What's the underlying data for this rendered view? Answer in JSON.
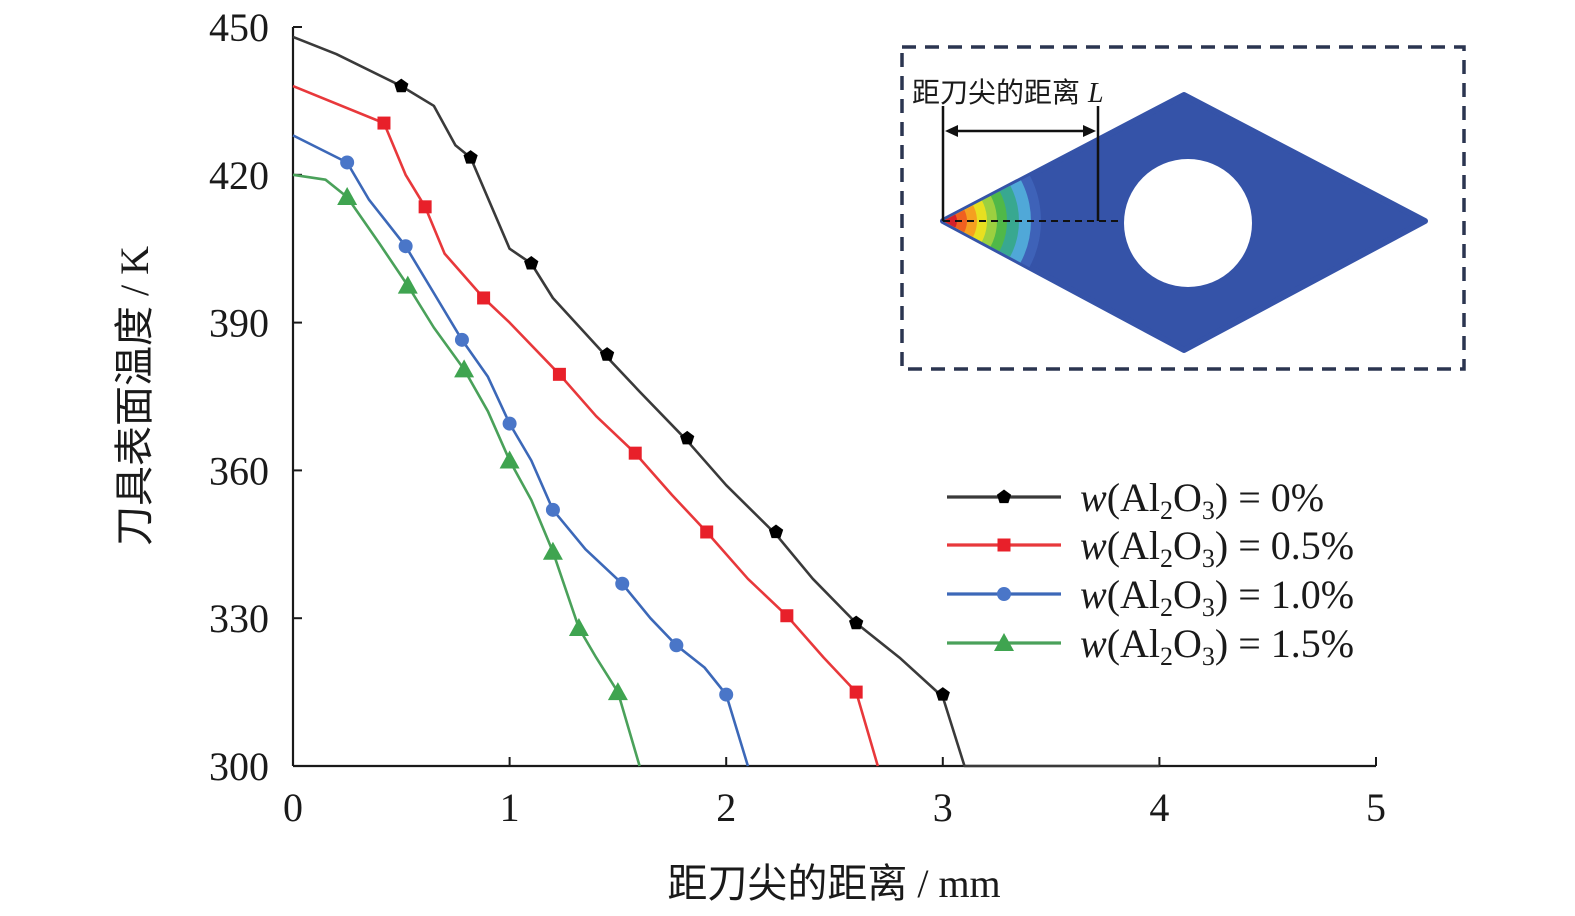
{
  "chart_data": {
    "type": "line",
    "xlabel": "距刀尖的距离 / mm",
    "ylabel": "刀具表面温度 / K",
    "xlim": [
      0,
      5
    ],
    "ylim": [
      300,
      450
    ],
    "xticks": [
      "0",
      "1",
      "2",
      "3",
      "4",
      "5"
    ],
    "yticks": [
      "300",
      "330",
      "360",
      "390",
      "420",
      "450"
    ],
    "grid": false,
    "legend_position": "right-center",
    "series": [
      {
        "name_prefix": "w(Al",
        "name_sub1": "2",
        "name_mid": "O",
        "name_sub2": "3",
        "name_suffix": ") = 0%",
        "color": "#3a3a3a",
        "marker": "pentagon",
        "marker_color": "#000000",
        "line": [
          [
            0,
            448
          ],
          [
            0.2,
            444.5
          ],
          [
            0.5,
            438
          ],
          [
            0.65,
            434
          ],
          [
            0.75,
            426
          ],
          [
            0.82,
            423.5
          ],
          [
            1.0,
            405
          ],
          [
            1.1,
            402
          ],
          [
            1.2,
            395
          ],
          [
            1.45,
            383
          ],
          [
            1.6,
            376
          ],
          [
            1.82,
            366
          ],
          [
            2.0,
            357
          ],
          [
            2.23,
            347
          ],
          [
            2.4,
            338
          ],
          [
            2.6,
            329
          ],
          [
            2.8,
            322
          ],
          [
            3.0,
            314
          ],
          [
            3.1,
            300
          ],
          [
            4.0,
            300
          ]
        ],
        "markers": [
          [
            0.5,
            438
          ],
          [
            0.82,
            423.5
          ],
          [
            1.1,
            402
          ],
          [
            1.45,
            383.5
          ],
          [
            1.82,
            366.5
          ],
          [
            2.23,
            347.5
          ],
          [
            2.6,
            329
          ],
          [
            3.0,
            314.5
          ]
        ]
      },
      {
        "name_prefix": "w(Al",
        "name_sub1": "2",
        "name_mid": "O",
        "name_sub2": "3",
        "name_suffix": ") = 0.5%",
        "color": "#e8383b",
        "marker": "square",
        "marker_color": "#e8202a",
        "line": [
          [
            0,
            438
          ],
          [
            0.42,
            430.5
          ],
          [
            0.52,
            420
          ],
          [
            0.61,
            413.5
          ],
          [
            0.7,
            404
          ],
          [
            0.88,
            395
          ],
          [
            1.0,
            390
          ],
          [
            1.23,
            379.5
          ],
          [
            1.4,
            371
          ],
          [
            1.58,
            363.5
          ],
          [
            1.75,
            355
          ],
          [
            1.91,
            347.5
          ],
          [
            2.1,
            338
          ],
          [
            2.28,
            330.5
          ],
          [
            2.45,
            322
          ],
          [
            2.6,
            315
          ],
          [
            2.7,
            300
          ]
        ],
        "markers": [
          [
            0.42,
            430.5
          ],
          [
            0.61,
            413.5
          ],
          [
            0.88,
            395
          ],
          [
            1.23,
            379.5
          ],
          [
            1.58,
            363.5
          ],
          [
            1.91,
            347.5
          ],
          [
            2.28,
            330.5
          ],
          [
            2.6,
            315
          ]
        ]
      },
      {
        "name_prefix": "w(Al",
        "name_sub1": "2",
        "name_mid": "O",
        "name_sub2": "3",
        "name_suffix": ") = 1.0%",
        "color": "#3c68b8",
        "marker": "circle",
        "marker_color": "#4a76c8",
        "line": [
          [
            0,
            428
          ],
          [
            0.25,
            422.5
          ],
          [
            0.35,
            415
          ],
          [
            0.52,
            405.5
          ],
          [
            0.65,
            396
          ],
          [
            0.78,
            386.5
          ],
          [
            0.9,
            379
          ],
          [
            1.0,
            369.5
          ],
          [
            1.1,
            362
          ],
          [
            1.2,
            352
          ],
          [
            1.35,
            344
          ],
          [
            1.52,
            337
          ],
          [
            1.65,
            330
          ],
          [
            1.77,
            324.5
          ],
          [
            1.9,
            320
          ],
          [
            2.0,
            314.5
          ],
          [
            2.1,
            300
          ]
        ],
        "markers": [
          [
            0.25,
            422.5
          ],
          [
            0.52,
            405.5
          ],
          [
            0.78,
            386.5
          ],
          [
            1.0,
            369.5
          ],
          [
            1.2,
            352
          ],
          [
            1.52,
            337
          ],
          [
            1.77,
            324.5
          ],
          [
            2.0,
            314.5
          ]
        ]
      },
      {
        "name_prefix": "w(Al",
        "name_sub1": "2",
        "name_mid": "O",
        "name_sub2": "3",
        "name_suffix": ") = 1.5%",
        "color": "#4aa15a",
        "marker": "triangle",
        "marker_color": "#3fa450",
        "line": [
          [
            0,
            420
          ],
          [
            0.15,
            419
          ],
          [
            0.25,
            415.5
          ],
          [
            0.4,
            406
          ],
          [
            0.53,
            397.5
          ],
          [
            0.65,
            389
          ],
          [
            0.79,
            380.5
          ],
          [
            0.9,
            372
          ],
          [
            1.0,
            362
          ],
          [
            1.1,
            354
          ],
          [
            1.2,
            343.5
          ],
          [
            1.32,
            328
          ],
          [
            1.4,
            322
          ],
          [
            1.5,
            315
          ],
          [
            1.6,
            300
          ]
        ],
        "markers": [
          [
            0.25,
            415.5
          ],
          [
            0.53,
            397.5
          ],
          [
            0.79,
            380.5
          ],
          [
            1.0,
            362
          ],
          [
            1.2,
            343.5
          ],
          [
            1.32,
            328
          ],
          [
            1.5,
            315
          ]
        ]
      }
    ],
    "inset": {
      "label_text": "距刀尖的距离",
      "label_symbol": "L",
      "contour_colors": [
        "#d4202a",
        "#f06020",
        "#f5a020",
        "#e8e020",
        "#9cd040",
        "#50b848",
        "#38a890",
        "#50a8d8",
        "#3e62b8"
      ],
      "insert_color": "#3553a8"
    }
  }
}
